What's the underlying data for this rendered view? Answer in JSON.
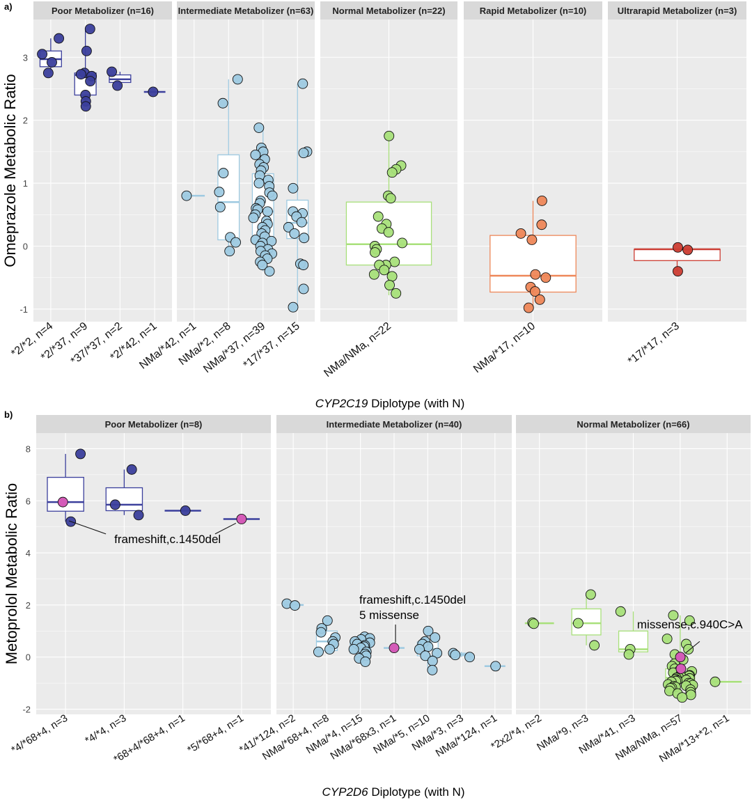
{
  "colors": {
    "panel_bg": "#ebebeb",
    "strip_bg": "#d9d9d9",
    "grid": "#ffffff",
    "poor": "#3b3f9c",
    "intermediate": "#9ecae1",
    "normal": "#a8e07a",
    "rapid": "#ee8759",
    "ultrarapid": "#cc3d33",
    "variant": "#d45bb8"
  },
  "chart_data": [
    {
      "type": "boxplot",
      "panel_label": "a)",
      "ylabel": "Omeprazole Metabolic Ratio",
      "xlabel_italic": "CYP2C19",
      "xlabel_rest": " Diplotype (with N)",
      "ylim": [
        -1.2,
        3.6
      ],
      "yticks": [
        -1,
        0,
        1,
        2,
        3
      ],
      "facets": [
        {
          "title": "Poor Metabolizer (n=16)",
          "color": "#3b3f9c",
          "groups": [
            {
              "label": "*2/*2, n=4",
              "box": {
                "q1": 2.85,
                "median": 2.97,
                "q3": 3.1,
                "lo": 2.75,
                "hi": 3.3
              },
              "points": [
                3.3,
                3.05,
                2.92,
                2.75
              ]
            },
            {
              "label": "*2/*37, n=9",
              "box": {
                "q1": 2.4,
                "median": 2.72,
                "q3": 2.75,
                "lo": 2.22,
                "hi": 3.45
              },
              "points": [
                3.45,
                3.1,
                2.75,
                2.73,
                2.7,
                2.62,
                2.4,
                2.3,
                2.22
              ]
            },
            {
              "label": "*37/*37, n=2",
              "box": {
                "q1": 2.6,
                "median": 2.65,
                "q3": 2.72,
                "lo": 2.55,
                "hi": 2.77
              },
              "points": [
                2.77,
                2.55
              ]
            },
            {
              "label": "*2/*42, n=1",
              "box": {
                "q1": 2.45,
                "median": 2.45,
                "q3": 2.45,
                "lo": 2.45,
                "hi": 2.45
              },
              "points": [
                2.45
              ]
            }
          ]
        },
        {
          "title": "Intermediate Metabolizer (n=63)",
          "color": "#9ecae1",
          "groups": [
            {
              "label": "NMa/*42, n=1",
              "box": {
                "q1": 0.8,
                "median": 0.8,
                "q3": 0.8,
                "lo": 0.8,
                "hi": 0.8
              },
              "points": [
                0.8
              ]
            },
            {
              "label": "NMa/*2, n=8",
              "box": {
                "q1": 0.1,
                "median": 0.7,
                "q3": 1.45,
                "lo": -0.08,
                "hi": 2.65
              },
              "points": [
                2.65,
                2.27,
                1.16,
                0.86,
                0.62,
                0.14,
                0.06,
                -0.08
              ]
            },
            {
              "label": "NMa/*37, n=39",
              "box": {
                "q1": 0.08,
                "median": 0.55,
                "q3": 1.15,
                "lo": -0.4,
                "hi": 1.9
              },
              "points": [
                1.88,
                1.56,
                1.5,
                1.45,
                1.38,
                1.3,
                1.25,
                1.2,
                1.12,
                1.05,
                1.0,
                0.95,
                0.85,
                0.8,
                0.72,
                0.68,
                0.6,
                0.58,
                0.55,
                0.5,
                0.45,
                0.4,
                0.35,
                0.3,
                0.25,
                0.2,
                0.15,
                0.1,
                0.08,
                0.05,
                0.0,
                -0.05,
                -0.08,
                -0.12,
                -0.15,
                -0.2,
                -0.25,
                -0.3,
                -0.4
              ]
            },
            {
              "label": "*17/*37, n=15",
              "box": {
                "q1": 0.12,
                "median": 0.37,
                "q3": 0.73,
                "lo": -1.0,
                "hi": 2.58
              },
              "points": [
                2.58,
                1.5,
                1.48,
                0.92,
                0.55,
                0.52,
                0.47,
                0.38,
                0.3,
                0.2,
                0.13,
                -0.28,
                -0.68,
                -0.97,
                -0.3
              ]
            }
          ]
        },
        {
          "title": "Normal Metabolizer (n=22)",
          "color": "#a8e07a",
          "groups": [
            {
              "label": "NMa/NMa, n=22",
              "box": {
                "q1": -0.3,
                "median": 0.03,
                "q3": 0.7,
                "lo": -0.78,
                "hi": 1.75
              },
              "points": [
                1.75,
                1.28,
                1.22,
                1.17,
                0.8,
                0.76,
                0.47,
                0.35,
                0.28,
                0.22,
                0.05,
                0.0,
                -0.05,
                -0.1,
                -0.25,
                -0.3,
                -0.3,
                -0.38,
                -0.45,
                -0.48,
                -0.62,
                -0.75
              ]
            }
          ]
        },
        {
          "title": "Rapid Metabolizer (n=10)",
          "color": "#ee8759",
          "groups": [
            {
              "label": "NMa/*17, n=10",
              "box": {
                "q1": -0.73,
                "median": -0.47,
                "q3": 0.17,
                "lo": -1.0,
                "hi": 0.72
              },
              "points": [
                0.72,
                0.34,
                0.2,
                0.1,
                -0.45,
                -0.5,
                -0.65,
                -0.72,
                -0.85,
                -0.98
              ]
            }
          ]
        },
        {
          "title": "Ultrarapid Metabolizer (n=3)",
          "color": "#cc3d33",
          "groups": [
            {
              "label": "*17/*17, n=3",
              "box": {
                "q1": -0.23,
                "median": -0.05,
                "q3": -0.05,
                "lo": -0.4,
                "hi": -0.05
              },
              "points": [
                -0.02,
                -0.06,
                -0.4
              ]
            }
          ]
        }
      ]
    },
    {
      "type": "boxplot",
      "panel_label": "b)",
      "ylabel": "Metoprolol Metabolic Ratio",
      "xlabel_italic": "CYP2D6",
      "xlabel_rest": " Diplotype (with N)",
      "ylim": [
        -2.2,
        8.6
      ],
      "yticks": [
        -2,
        0,
        2,
        4,
        6,
        8
      ],
      "facets": [
        {
          "title": "Poor Metabolizer (n=8)",
          "color": "#3b3f9c",
          "groups": [
            {
              "label": "*4/*68+4, n=3",
              "box": {
                "q1": 5.6,
                "median": 5.95,
                "q3": 6.9,
                "lo": 5.2,
                "hi": 7.8
              },
              "points": [
                7.8,
                5.2
              ],
              "highlight": [
                5.95
              ]
            },
            {
              "label": "*4/*4, n=3",
              "box": {
                "q1": 5.62,
                "median": 5.85,
                "q3": 6.5,
                "lo": 5.45,
                "hi": 7.2
              },
              "points": [
                7.2,
                5.85,
                5.45
              ]
            },
            {
              "label": "*68+4/*68+4, n=1",
              "box": {
                "q1": 5.62,
                "median": 5.62,
                "q3": 5.62,
                "lo": 5.62,
                "hi": 5.62
              },
              "points": [
                5.62
              ]
            },
            {
              "label": "*5/*68+4, n=1",
              "box": {
                "q1": 5.3,
                "median": 5.3,
                "q3": 5.3,
                "lo": 5.3,
                "hi": 5.3
              },
              "points": [],
              "highlight": [
                5.3
              ]
            }
          ],
          "annotations": [
            {
              "text": "frameshift,c.1450del",
              "lines": [
                {
                  "from_group": 0,
                  "from_y": 5.0
                },
                {
                  "from_group": 3,
                  "from_y": 5.2
                }
              ],
              "anchor_y": 4.3
            }
          ]
        },
        {
          "title": "Intermediate Metabolizer (n=40)",
          "color": "#9ecae1",
          "groups": [
            {
              "label": "*41/*124, n=2",
              "box": {
                "q1": 2.0,
                "median": 2.0,
                "q3": 2.0,
                "lo": 2.0,
                "hi": 2.0
              },
              "points": [
                2.05,
                1.98
              ]
            },
            {
              "label": "NMa/*68+4, n=8",
              "box": {
                "q1": 0.25,
                "median": 0.6,
                "q3": 1.0,
                "lo": 0.2,
                "hi": 1.4
              },
              "points": [
                1.4,
                1.1,
                0.95,
                0.75,
                0.6,
                0.5,
                0.3,
                0.2
              ]
            },
            {
              "label": "NMa/*4, n=15",
              "box": {
                "q1": 0.15,
                "median": 0.4,
                "q3": 0.62,
                "lo": -0.2,
                "hi": 0.8
              },
              "points": [
                0.78,
                0.72,
                0.68,
                0.6,
                0.55,
                0.5,
                0.45,
                0.4,
                0.35,
                0.3,
                0.2,
                0.12,
                0.05,
                -0.05,
                -0.18
              ]
            },
            {
              "label": "NMa/*68x3, n=1",
              "box": {
                "q1": 0.35,
                "median": 0.35,
                "q3": 0.35,
                "lo": 0.35,
                "hi": 0.35
              },
              "points": [],
              "highlight": [
                0.35
              ]
            },
            {
              "label": "NMa/*5, n=10",
              "box": {
                "q1": 0.05,
                "median": 0.3,
                "q3": 0.58,
                "lo": -0.5,
                "hi": 1.0
              },
              "points": [
                1.0,
                0.75,
                0.6,
                0.5,
                0.4,
                0.3,
                0.15,
                0.05,
                -0.15,
                -0.5
              ]
            },
            {
              "label": "NMa/*3, n=3",
              "box": {
                "q1": 0.05,
                "median": 0.1,
                "q3": 0.15,
                "lo": 0.0,
                "hi": 0.2
              },
              "points": [
                0.15,
                0.08,
                0.0
              ]
            },
            {
              "label": "NMa/*124, n=1",
              "box": {
                "q1": -0.35,
                "median": -0.35,
                "q3": -0.35,
                "lo": -0.35,
                "hi": -0.35
              },
              "points": [
                -0.35
              ]
            }
          ],
          "annotations": [
            {
              "text_lines": [
                "frameshift,c.1450del",
                "5 missense"
              ],
              "group": 3
            }
          ]
        },
        {
          "title": "Normal Metabolizer (n=66)",
          "color": "#a8e07a",
          "groups": [
            {
              "label": "*2x2/*4, n=2",
              "box": {
                "q1": 1.3,
                "median": 1.3,
                "q3": 1.3,
                "lo": 1.3,
                "hi": 1.3
              },
              "points": [
                1.32,
                1.28
              ]
            },
            {
              "label": "NMa/*9, n=3",
              "box": {
                "q1": 0.85,
                "median": 1.3,
                "q3": 1.85,
                "lo": 0.45,
                "hi": 2.4
              },
              "points": [
                2.4,
                1.3,
                0.45
              ]
            },
            {
              "label": "NMa/*41, n=3",
              "box": {
                "q1": 0.2,
                "median": 0.3,
                "q3": 1.0,
                "lo": 0.1,
                "hi": 1.75
              },
              "points": [
                1.75,
                0.3,
                0.1
              ]
            },
            {
              "label": "NMa/NMa, n=57",
              "box": {
                "q1": -1.1,
                "median": -0.8,
                "q3": -0.45,
                "lo": -1.55,
                "hi": 1.6
              },
              "points": [
                1.6,
                1.4,
                0.7,
                0.5,
                0.3,
                0.1,
                -0.1,
                -0.25,
                -0.35,
                -0.45,
                -0.5,
                -0.55,
                -0.6,
                -0.65,
                -0.7,
                -0.72,
                -0.75,
                -0.78,
                -0.8,
                -0.82,
                -0.85,
                -0.88,
                -0.9,
                -0.92,
                -0.95,
                -1.0,
                -1.02,
                -1.05,
                -1.08,
                -1.1,
                -1.12,
                -1.15,
                -1.18,
                -1.2,
                -1.25,
                -1.3,
                -1.35,
                -1.4,
                -1.45,
                -1.55
              ],
              "highlight": [
                0.0,
                -0.45
              ]
            },
            {
              "label": "NMa/*13+*2, n=1",
              "box": {
                "q1": -0.95,
                "median": -0.95,
                "q3": -0.95,
                "lo": -0.95,
                "hi": -0.95
              },
              "points": [
                -0.95
              ]
            }
          ],
          "annotations": [
            {
              "text": "missense,c.940C>A",
              "group": 3
            }
          ]
        }
      ]
    }
  ]
}
